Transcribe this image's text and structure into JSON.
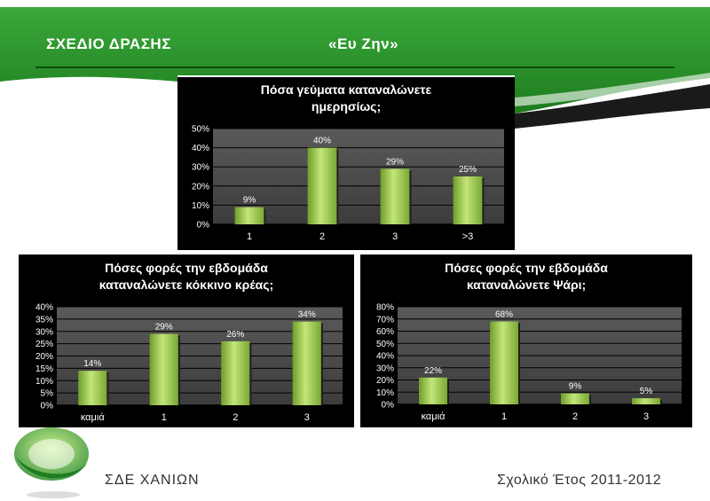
{
  "header": {
    "title": "ΣΧΕΔΙΟ ΔΡΑΣΗΣ",
    "slogan": "«Ευ Ζην»"
  },
  "footer": {
    "organization": "ΣΔΕ ΧΑΝΙΩΝ",
    "school_year": "Σχολικό Έτος 2011-2012"
  },
  "colors": {
    "banner_green": "#2f9a2f",
    "bar_green": "#9ccc4a",
    "panel_bg": "#000000",
    "plot_bg": "#4a4a4a"
  },
  "chart_data": [
    {
      "type": "bar",
      "title": "Πόσα γεύματα καταναλώνετε\nημερησίως;",
      "categories": [
        "1",
        "2",
        "3",
        ">3"
      ],
      "values": [
        9,
        40,
        29,
        25
      ],
      "value_labels": [
        "9%",
        "40%",
        "29%",
        "25%"
      ],
      "yticks": [
        "0%",
        "10%",
        "20%",
        "30%",
        "40%",
        "50%"
      ],
      "ylim": [
        0,
        50
      ],
      "ytick_step": 10,
      "grid": true
    },
    {
      "type": "bar",
      "title": "Πόσες φορές την εβδομάδα\nκαταναλώνετε κόκκινο κρέας;",
      "categories": [
        "καμιά",
        "1",
        "2",
        "3"
      ],
      "values": [
        14,
        29,
        26,
        34
      ],
      "value_labels": [
        "14%",
        "29%",
        "26%",
        "34%"
      ],
      "yticks": [
        "0%",
        "5%",
        "10%",
        "15%",
        "20%",
        "25%",
        "30%",
        "35%",
        "40%"
      ],
      "ylim": [
        0,
        40
      ],
      "ytick_step": 5,
      "grid": true
    },
    {
      "type": "bar",
      "title": "Πόσες φορές την εβδομάδα\nκαταναλώνετε Ψάρι;",
      "categories": [
        "καμιά",
        "1",
        "2",
        "3"
      ],
      "values": [
        22,
        68,
        9,
        5
      ],
      "value_labels": [
        "22%",
        "68%",
        "9%",
        "5%"
      ],
      "yticks": [
        "0%",
        "10%",
        "20%",
        "30%",
        "40%",
        "50%",
        "60%",
        "70%",
        "80%"
      ],
      "ylim": [
        0,
        80
      ],
      "ytick_step": 10,
      "grid": true
    }
  ]
}
